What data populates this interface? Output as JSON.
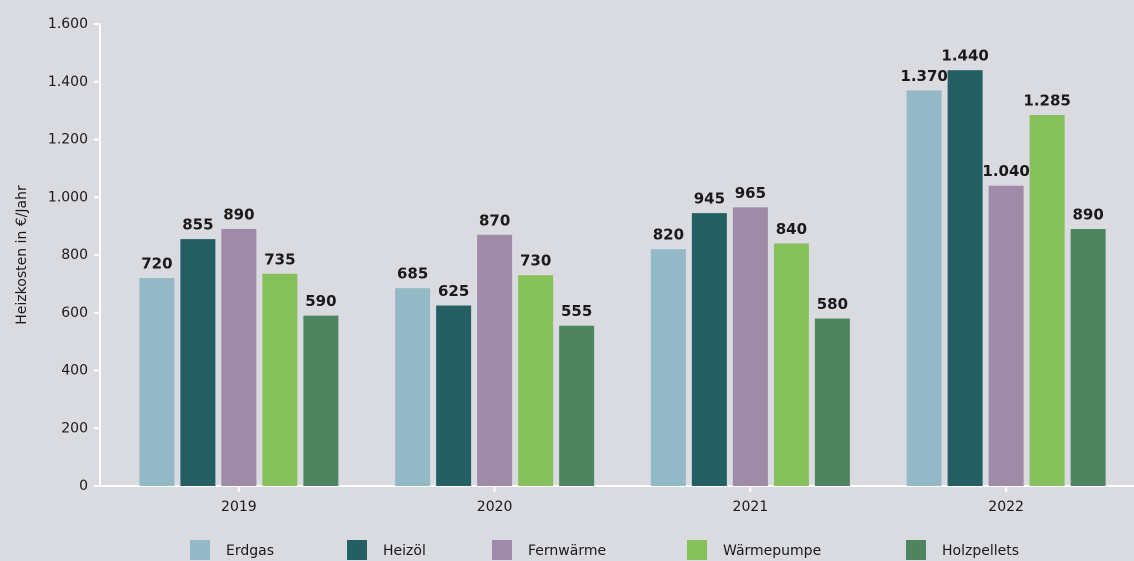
{
  "chart_data": {
    "type": "bar",
    "ylabel": "Heizkosten in €/Jahr",
    "categories": [
      "2019",
      "2020",
      "2021",
      "2022"
    ],
    "series": [
      {
        "name": "Erdgas",
        "color": "#93b8c6",
        "values": [
          720,
          685,
          820,
          1370
        ],
        "value_labels": [
          "720",
          "685",
          "820",
          "1.370"
        ]
      },
      {
        "name": "Heizöl",
        "color": "#235f63",
        "values": [
          855,
          625,
          945,
          1440
        ],
        "value_labels": [
          "855",
          "625",
          "945",
          "1.440"
        ]
      },
      {
        "name": "Fernwärme",
        "color": "#9f8aa8",
        "values": [
          890,
          870,
          965,
          1040
        ],
        "value_labels": [
          "890",
          "870",
          "965",
          "1.040"
        ]
      },
      {
        "name": "Wärmepumpe",
        "color": "#86c05a",
        "values": [
          735,
          730,
          840,
          1285
        ],
        "value_labels": [
          "735",
          "730",
          "840",
          "1.285"
        ]
      },
      {
        "name": "Holzpellets",
        "color": "#4f8460",
        "values": [
          590,
          555,
          580,
          890
        ],
        "value_labels": [
          "590",
          "555",
          "580",
          "890"
        ]
      }
    ],
    "ylim": [
      0,
      1600
    ],
    "yticks": [
      0,
      200,
      400,
      600,
      800,
      {
        "value": 1000,
        "label": "1.000"
      },
      {
        "value": 1200,
        "label": "1.200"
      },
      {
        "value": 1400,
        "label": "1.400"
      },
      {
        "value": 1600,
        "label": "1.600"
      }
    ],
    "legend": "bottom"
  }
}
